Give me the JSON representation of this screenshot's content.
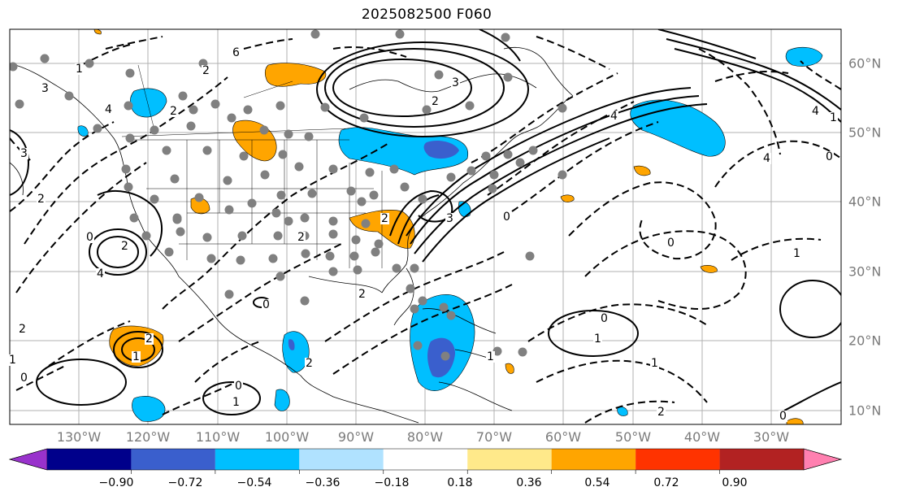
{
  "title": "2025082500 F060",
  "lat_labels": [
    "60°N",
    "50°N",
    "40°N",
    "30°N",
    "20°N",
    "10°N"
  ],
  "lon_labels": [
    "130°W",
    "120°W",
    "110°W",
    "100°W",
    "90°W",
    "80°W",
    "70°W",
    "60°W",
    "50°W",
    "40°W",
    "30°W"
  ],
  "colorbar": {
    "ticks": [
      "−0.90",
      "−0.72",
      "−0.54",
      "−0.36",
      "−0.18",
      "0.18",
      "0.36",
      "0.54",
      "0.72",
      "0.90"
    ],
    "colors": [
      "#9932cc",
      "#00008b",
      "#3a5fcd",
      "#00bfff",
      "#b0e2ff",
      "#ffffff",
      "#ffe98a",
      "#ffa500",
      "#ff3300",
      "#b22222",
      "#ff80b0"
    ]
  },
  "contour_labels": [
    "1",
    "2",
    "3",
    "4",
    "6",
    "0"
  ],
  "colors": {
    "solid_contour": "#000000",
    "dashed_contour": "#000000",
    "grid": "#b0b0b0",
    "station_dot": "#808080",
    "blue_fill": "#00bfff",
    "dark_blue_fill": "#3a5fcd",
    "orange_fill": "#ffa500"
  }
}
